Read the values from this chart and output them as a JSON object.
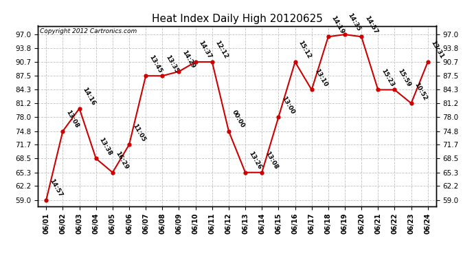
{
  "title": "Heat Index Daily High 20120625",
  "copyright": "Copyright 2012 Cartronics.com",
  "dates": [
    "06/01",
    "06/02",
    "06/03",
    "06/04",
    "06/05",
    "06/06",
    "06/07",
    "06/08",
    "06/09",
    "06/10",
    "06/11",
    "06/12",
    "06/13",
    "06/14",
    "06/15",
    "06/16",
    "06/17",
    "06/18",
    "06/19",
    "06/20",
    "06/21",
    "06/22",
    "06/23",
    "06/24"
  ],
  "values": [
    59.0,
    74.8,
    80.0,
    68.5,
    65.3,
    71.7,
    87.5,
    87.5,
    88.5,
    90.7,
    90.7,
    74.8,
    65.3,
    65.3,
    78.0,
    90.7,
    84.3,
    96.5,
    97.0,
    96.5,
    84.3,
    84.3,
    81.2,
    90.7
  ],
  "times": [
    "14:57",
    "13:08",
    "14:16",
    "13:38",
    "16:29",
    "11:05",
    "13:45",
    "13:35",
    "14:29",
    "14:37",
    "12:12",
    "00:00",
    "13:26",
    "13:08",
    "13:00",
    "15:12",
    "13:10",
    "14:19",
    "14:35",
    "14:57",
    "15:23",
    "15:59",
    "10:52",
    "13:31"
  ],
  "line_color": "#cc0000",
  "marker_color": "#cc0000",
  "bg_color": "#ffffff",
  "grid_color": "#c0c0c0",
  "yticks": [
    59.0,
    62.2,
    65.3,
    68.5,
    71.7,
    74.8,
    78.0,
    81.2,
    84.3,
    87.5,
    90.7,
    93.8,
    97.0
  ],
  "ylim": [
    57.5,
    99.0
  ],
  "title_fontsize": 11,
  "label_fontsize": 6.5,
  "copyright_fontsize": 6.5
}
